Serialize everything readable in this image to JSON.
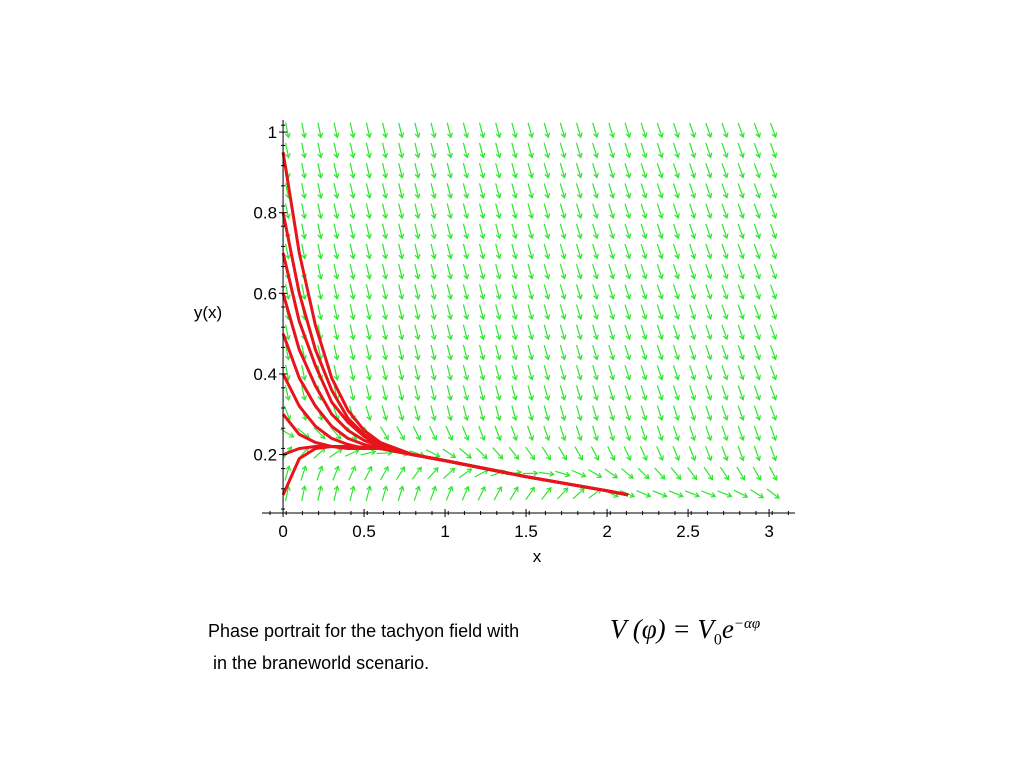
{
  "chart_data": {
    "type": "phase-portrait",
    "xlabel": "x",
    "ylabel": "y(x)",
    "xlim": [
      -0.13,
      3.16
    ],
    "ylim": [
      0.055,
      1.03
    ],
    "xticks": [
      0,
      0.5,
      1,
      1.5,
      2,
      2.5,
      3
    ],
    "yticks": [
      0.2,
      0.4,
      0.6,
      0.8,
      1
    ],
    "color": "#e8141c",
    "field_color": "#2ee62e",
    "x": [
      0,
      0.1,
      0.2,
      0.3,
      0.4,
      0.5,
      0.6,
      0.8,
      1,
      1.5,
      2,
      2.13
    ],
    "series": [
      {
        "values": [
          0.95,
          0.7,
          0.52,
          0.39,
          0.31,
          0.26,
          0.23,
          0.2,
          0.185,
          0.145,
          0.11,
          0.1
        ]
      },
      {
        "values": [
          0.8,
          0.6,
          0.46,
          0.36,
          0.29,
          0.25,
          0.225,
          0.2,
          0.185,
          0.145,
          0.11,
          0.1
        ]
      },
      {
        "values": [
          0.7,
          0.53,
          0.42,
          0.33,
          0.28,
          0.245,
          0.22,
          0.2,
          0.185,
          0.145,
          0.11,
          0.1
        ]
      },
      {
        "values": [
          0.6,
          0.46,
          0.37,
          0.3,
          0.26,
          0.235,
          0.22,
          0.2,
          0.185,
          0.145,
          0.11,
          0.1
        ]
      },
      {
        "values": [
          0.5,
          0.39,
          0.32,
          0.27,
          0.24,
          0.225,
          0.215,
          0.2,
          0.185,
          0.145,
          0.11,
          0.1
        ]
      },
      {
        "values": [
          0.4,
          0.32,
          0.27,
          0.24,
          0.225,
          0.215,
          0.215,
          0.2,
          0.185,
          0.145,
          0.11,
          0.1
        ]
      },
      {
        "values": [
          0.3,
          0.25,
          0.23,
          0.22,
          0.215,
          0.215,
          0.215,
          0.2,
          0.185,
          0.145,
          0.11,
          0.1
        ]
      },
      {
        "values": [
          0.2,
          0.215,
          0.22,
          0.22,
          0.22,
          0.215,
          0.215,
          0.2,
          0.185,
          0.145,
          0.11,
          0.1
        ]
      },
      {
        "values": [
          0.1,
          0.19,
          0.215,
          0.22,
          0.22,
          0.218,
          0.215,
          0.2,
          0.185,
          0.145,
          0.11,
          0.1
        ]
      }
    ]
  },
  "caption": {
    "line1": "Phase portrait for the tachyon field with",
    "line2": " in the braneworld scenario.",
    "formula": {
      "main": "V (φ) = V",
      "sub": "0",
      "base": "e",
      "sup": "−αφ"
    }
  }
}
